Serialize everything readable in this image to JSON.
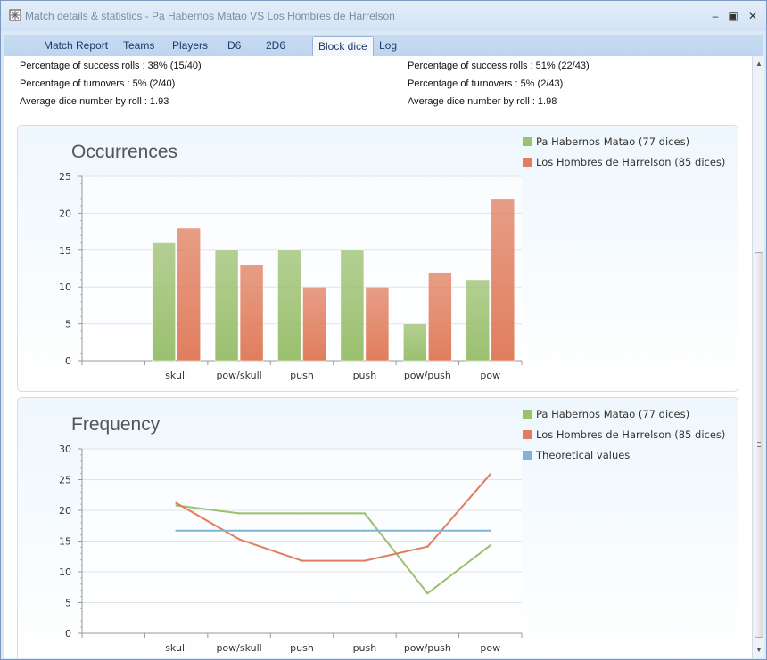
{
  "window": {
    "title": "Match details & statistics - Pa Habernos Matao VS Los Hombres de Harrelson"
  },
  "tabs": [
    {
      "label": "Match Report"
    },
    {
      "label": "Teams"
    },
    {
      "label": "Players"
    },
    {
      "label": "D6"
    },
    {
      "label": "2D6"
    },
    {
      "label": "Block dice",
      "active": true
    },
    {
      "label": "Log"
    }
  ],
  "stats": {
    "team1": {
      "success": "Percentage of success rolls : 38% (15/40)",
      "turnovers": "Percentage of turnovers : 5% (2/40)",
      "avg": "Average dice number by roll : 1.93"
    },
    "team2": {
      "success": "Percentage of success rolls : 51% (22/43)",
      "turnovers": "Percentage of turnovers : 5% (2/43)",
      "avg": "Average dice number by roll : 1.98"
    }
  },
  "colors": {
    "team1": "#9bc06f",
    "team2": "#e07e5e",
    "theoretical": "#7fb6d8"
  },
  "chart_data": [
    {
      "type": "bar",
      "title": "Occurrences",
      "categories": [
        "",
        "skull",
        "pow/skull",
        "push",
        "push",
        "pow/push",
        "pow"
      ],
      "ylim": [
        0,
        25
      ],
      "yticks": [
        0,
        5,
        10,
        15,
        20,
        25
      ],
      "grid": true,
      "legend_position": "top-right",
      "series": [
        {
          "name": "Pa Habernos Matao (77 dices)",
          "values": [
            null,
            16,
            15,
            15,
            15,
            5,
            11
          ]
        },
        {
          "name": "Los Hombres de Harrelson (85 dices)",
          "values": [
            null,
            18,
            13,
            10,
            10,
            12,
            22
          ]
        }
      ]
    },
    {
      "type": "line",
      "title": "Frequency",
      "categories": [
        "",
        "skull",
        "pow/skull",
        "push",
        "push",
        "pow/push",
        "pow"
      ],
      "ylim": [
        0,
        30
      ],
      "yticks": [
        0,
        5,
        10,
        15,
        20,
        25,
        30
      ],
      "grid": true,
      "legend_position": "top-right",
      "series": [
        {
          "name": "Pa Habernos Matao (77 dices)",
          "values": [
            null,
            20.8,
            19.5,
            19.5,
            19.5,
            6.5,
            14.3
          ]
        },
        {
          "name": "Los Hombres de Harrelson (85 dices)",
          "values": [
            null,
            21.2,
            15.3,
            11.8,
            11.8,
            14.1,
            25.9
          ]
        },
        {
          "name": "Theoretical values",
          "values": [
            null,
            16.7,
            16.7,
            16.7,
            16.7,
            16.7,
            16.7
          ]
        }
      ]
    }
  ]
}
